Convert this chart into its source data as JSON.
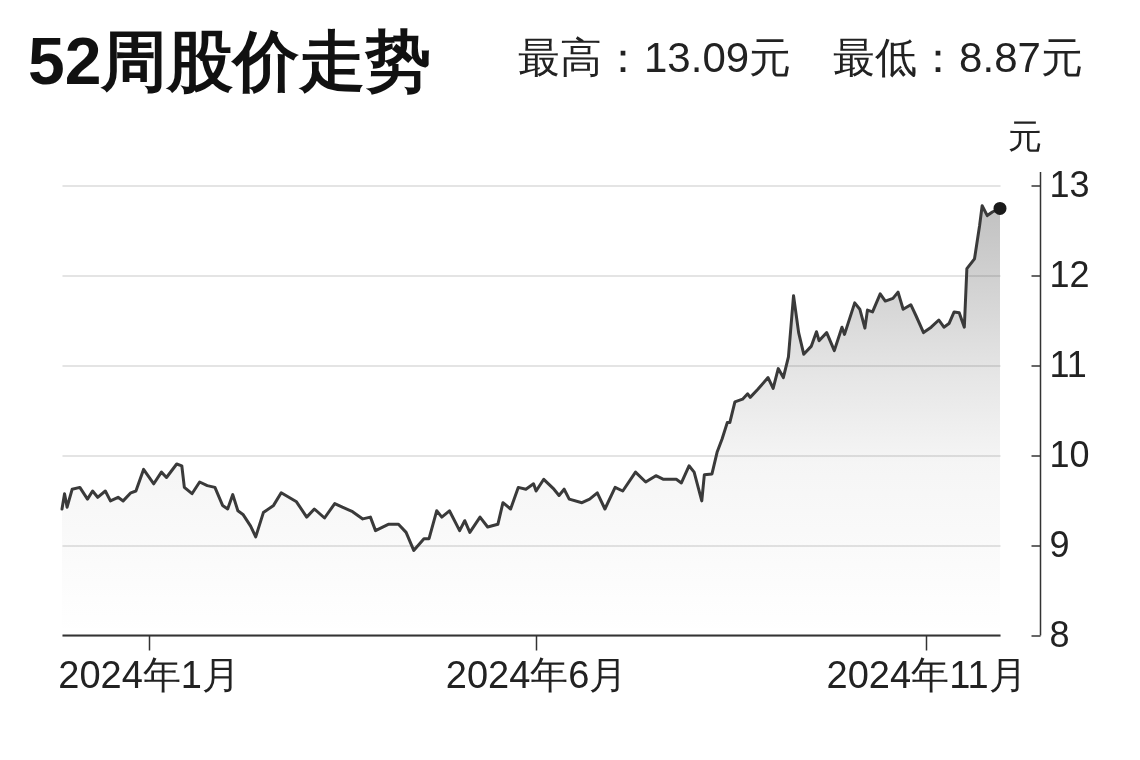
{
  "chart_data": {
    "type": "area",
    "title": "52周股价走势",
    "subtitle": "最高：13.09元　最低：8.87元",
    "ylabel": "元",
    "xlim": [
      "2023-11-28",
      "2024-11-30"
    ],
    "xticks": [
      {
        "value": "2024-01",
        "label": "2024年1月"
      },
      {
        "value": "2024-06",
        "label": "2024年6月"
      },
      {
        "value": "2024-11",
        "label": "2024年11月"
      }
    ],
    "ylim": [
      8,
      13.15
    ],
    "yticks": [
      8,
      9,
      10,
      11,
      12,
      13
    ],
    "grid": "y",
    "x": [
      "2023-11-28",
      "2023-11-29",
      "2023-11-30",
      "2023-12-02",
      "2023-12-05",
      "2023-12-08",
      "2023-12-10",
      "2023-12-12",
      "2023-12-15",
      "2023-12-17",
      "2023-12-20",
      "2023-12-22",
      "2023-12-25",
      "2023-12-27",
      "2023-12-30",
      "2024-01-03",
      "2024-01-06",
      "2024-01-08",
      "2024-01-12",
      "2024-01-14",
      "2024-01-15",
      "2024-01-18",
      "2024-01-21",
      "2024-01-24",
      "2024-01-27",
      "2024-01-30",
      "2024-02-01",
      "2024-02-03",
      "2024-02-05",
      "2024-02-07",
      "2024-02-10",
      "2024-02-12",
      "2024-02-15",
      "2024-02-19",
      "2024-02-22",
      "2024-02-25",
      "2024-02-28",
      "2024-03-03",
      "2024-03-06",
      "2024-03-10",
      "2024-03-14",
      "2024-03-17",
      "2024-03-21",
      "2024-03-25",
      "2024-03-28",
      "2024-03-30",
      "2024-04-04",
      "2024-04-08",
      "2024-04-11",
      "2024-04-14",
      "2024-04-18",
      "2024-04-20",
      "2024-04-23",
      "2024-04-25",
      "2024-04-28",
      "2024-05-02",
      "2024-05-04",
      "2024-05-06",
      "2024-05-10",
      "2024-05-13",
      "2024-05-17",
      "2024-05-19",
      "2024-05-22",
      "2024-05-25",
      "2024-05-28",
      "2024-05-31",
      "2024-06-01",
      "2024-06-04",
      "2024-06-08",
      "2024-06-10",
      "2024-06-12",
      "2024-06-14",
      "2024-06-19",
      "2024-06-22",
      "2024-06-25",
      "2024-06-28",
      "2024-07-02",
      "2024-07-05",
      "2024-07-10",
      "2024-07-14",
      "2024-07-18",
      "2024-07-21",
      "2024-07-26",
      "2024-07-28",
      "2024-07-31",
      "2024-08-02",
      "2024-08-05",
      "2024-08-06",
      "2024-08-09",
      "2024-08-11",
      "2024-08-13",
      "2024-08-15",
      "2024-08-16",
      "2024-08-18",
      "2024-08-21",
      "2024-08-23",
      "2024-08-24",
      "2024-08-27",
      "2024-08-31",
      "2024-09-02",
      "2024-09-04",
      "2024-09-06",
      "2024-09-08",
      "2024-09-10",
      "2024-09-12",
      "2024-09-14",
      "2024-09-17",
      "2024-09-19",
      "2024-09-20",
      "2024-09-23",
      "2024-09-26",
      "2024-09-29",
      "2024-09-30",
      "2024-10-04",
      "2024-10-06",
      "2024-10-08",
      "2024-10-09",
      "2024-10-11",
      "2024-10-14",
      "2024-10-16",
      "2024-10-19",
      "2024-10-21",
      "2024-10-23",
      "2024-10-26",
      "2024-10-28",
      "2024-10-31",
      "2024-11-03",
      "2024-11-06",
      "2024-11-08",
      "2024-11-10",
      "2024-11-12",
      "2024-11-14",
      "2024-11-16",
      "2024-11-17",
      "2024-11-20",
      "2024-11-22",
      "2024-11-23",
      "2024-11-25",
      "2024-11-27",
      "2024-11-30"
    ],
    "series": [
      {
        "color": "#3a3a3a",
        "values": [
          9.4,
          9.57,
          9.42,
          9.62,
          9.64,
          9.51,
          9.6,
          9.53,
          9.6,
          9.49,
          9.53,
          9.49,
          9.58,
          9.6,
          9.84,
          9.68,
          9.81,
          9.75,
          9.9,
          9.88,
          9.64,
          9.57,
          9.7,
          9.66,
          9.64,
          9.44,
          9.4,
          9.56,
          9.38,
          9.34,
          9.21,
          9.09,
          9.36,
          9.44,
          9.58,
          9.53,
          9.48,
          9.31,
          9.4,
          9.3,
          9.46,
          9.42,
          9.37,
          9.29,
          9.31,
          9.16,
          9.23,
          9.23,
          9.14,
          8.94,
          9.07,
          9.07,
          9.38,
          9.31,
          9.38,
          9.16,
          9.27,
          9.14,
          9.31,
          9.2,
          9.23,
          9.47,
          9.4,
          9.64,
          9.62,
          9.68,
          9.6,
          9.73,
          9.62,
          9.55,
          9.62,
          9.51,
          9.47,
          9.51,
          9.58,
          9.4,
          9.64,
          9.6,
          9.81,
          9.7,
          9.77,
          9.73,
          9.73,
          9.69,
          9.88,
          9.81,
          9.49,
          9.78,
          9.79,
          10.03,
          10.18,
          10.36,
          10.36,
          10.59,
          10.62,
          10.68,
          10.64,
          10.73,
          10.86,
          10.74,
          10.96,
          10.86,
          11.09,
          11.77,
          11.36,
          11.12,
          11.21,
          11.37,
          11.27,
          11.36,
          11.16,
          11.42,
          11.34,
          11.69,
          11.62,
          11.41,
          11.61,
          11.59,
          11.79,
          11.71,
          11.74,
          11.81,
          11.62,
          11.67,
          11.55,
          11.36,
          11.42,
          11.5,
          11.42,
          11.46,
          11.59,
          11.58,
          11.42,
          12.07,
          12.18,
          12.55,
          12.77,
          12.66,
          12.7,
          12.74
        ]
      },
      {
        "type": "scatter",
        "x": [
          "2024-11-30"
        ],
        "values": [
          12.74
        ],
        "color": "#1a1a1a"
      }
    ]
  }
}
